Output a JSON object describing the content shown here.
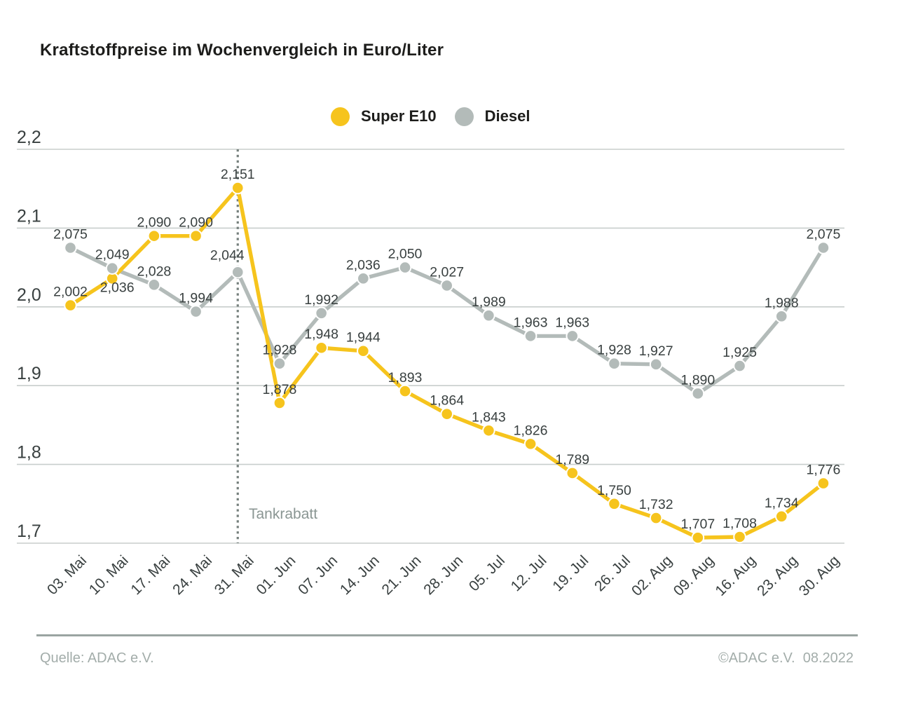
{
  "title": "Kraftstoffpreise im Wochenvergleich in Euro/Liter",
  "chart_data": {
    "type": "line",
    "categories": [
      "03. Mai",
      "10. Mai",
      "17. Mai",
      "24. Mai",
      "31. Mai",
      "01. Jun",
      "07. Jun",
      "14. Jun",
      "21. Jun",
      "28. Jun",
      "05. Jul",
      "12. Jul",
      "19. Jul",
      "26. Jul",
      "02. Aug",
      "09. Aug",
      "16. Aug",
      "23. Aug",
      "30. Aug"
    ],
    "y_ticks": [
      "2,2",
      "2,1",
      "2,0",
      "1,9",
      "1,8",
      "1,7"
    ],
    "ylim": [
      1.7,
      2.2
    ],
    "grid": true,
    "legend_position": "top-center",
    "decimal_style": "comma",
    "series": [
      {
        "name": "Super E10",
        "color": "#F6C41D",
        "values": [
          2.002,
          2.036,
          2.09,
          2.09,
          2.151,
          1.878,
          1.948,
          1.944,
          1.893,
          1.864,
          1.843,
          1.826,
          1.789,
          1.75,
          1.732,
          1.707,
          1.708,
          1.734,
          1.776
        ],
        "label_offsets": {
          "1": [
            7,
            32
          ]
        }
      },
      {
        "name": "Diesel",
        "color": "#B3BBB9",
        "values": [
          2.075,
          2.049,
          2.028,
          1.994,
          2.044,
          1.928,
          1.992,
          2.036,
          2.05,
          2.027,
          1.989,
          1.963,
          1.963,
          1.928,
          1.927,
          1.89,
          1.925,
          1.988,
          2.075
        ],
        "label_offsets": {
          "4": [
            -15,
            -5
          ]
        }
      }
    ],
    "annotation": {
      "text": "Tankrabatt",
      "at_category": "31. Mai"
    },
    "colors": {
      "grid_line": "#C8CECC",
      "dotted_line": "#76807d",
      "value_label": "#394040",
      "tick_label": "#394040",
      "annotation_text": "#8a9693",
      "footer_text": "#a3adaa",
      "footer_rule": "#9aa4a1"
    }
  },
  "footer": {
    "source": "Quelle: ADAC e.V.",
    "copyright": "©ADAC e.V.  08.2022"
  }
}
